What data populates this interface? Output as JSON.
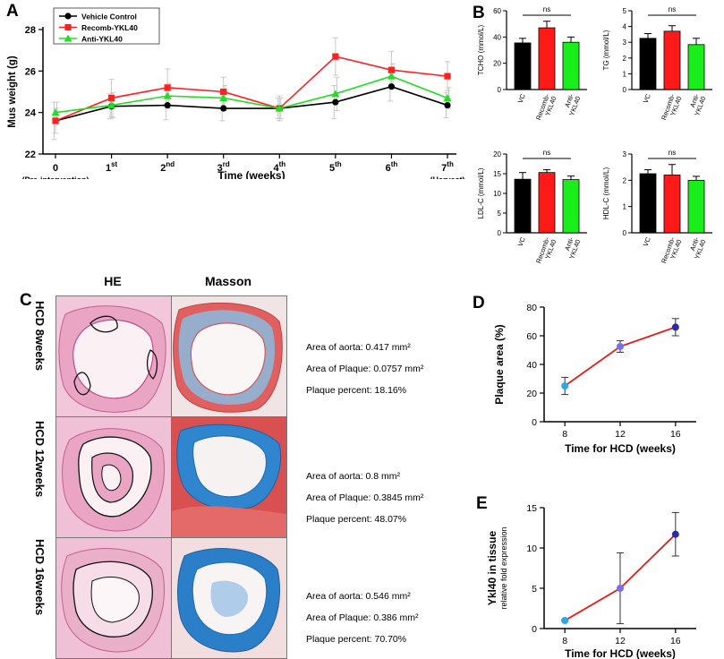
{
  "panel_labels": {
    "a": "A",
    "b": "B",
    "c": "C",
    "d": "D",
    "e": "E"
  },
  "chart_data": [
    {
      "id": "A",
      "type": "line",
      "ylabel": "Mus weight (g)",
      "xlabel": "Time (weeks)",
      "ylim": [
        22,
        28
      ],
      "yticks": [
        "22",
        "24",
        "26",
        "28"
      ],
      "x_ticks": [
        {
          "main": "0",
          "sup": "",
          "sub": "(Pre-intervention)"
        },
        {
          "main": "1",
          "sup": "st",
          "sub": ""
        },
        {
          "main": "2",
          "sup": "nd",
          "sub": ""
        },
        {
          "main": "3",
          "sup": "rd",
          "sub": ""
        },
        {
          "main": "4",
          "sup": "th",
          "sub": ""
        },
        {
          "main": "5",
          "sup": "th",
          "sub": ""
        },
        {
          "main": "6",
          "sup": "th",
          "sub": ""
        },
        {
          "main": "7",
          "sup": "th",
          "sub": "(Harvest)"
        }
      ],
      "series": [
        {
          "name": "Vehicle Control",
          "color": "#000000",
          "marker": "circle",
          "values": [
            23.6,
            24.3,
            24.35,
            24.2,
            24.2,
            24.5,
            25.25,
            24.35
          ],
          "errors": [
            0.9,
            0.6,
            0.7,
            0.6,
            0.5,
            0.8,
            0.7,
            0.6
          ]
        },
        {
          "name": "Recomb-YKL40",
          "color": "#ff2020",
          "marker": "square",
          "values": [
            23.6,
            24.7,
            25.2,
            25.0,
            24.2,
            26.7,
            26.05,
            25.75
          ],
          "errors": [
            0.6,
            0.9,
            0.9,
            0.7,
            0.6,
            0.9,
            0.9,
            0.7
          ]
        },
        {
          "name": "Anti-YKL40",
          "color": "#22dd22",
          "marker": "triangle",
          "values": [
            24.0,
            24.35,
            24.8,
            24.7,
            24.2,
            24.9,
            25.75,
            24.7
          ],
          "errors": [
            0.5,
            0.6,
            0.6,
            0.6,
            0.5,
            0.8,
            0.6,
            0.5
          ]
        }
      ]
    },
    {
      "id": "B1",
      "type": "bar",
      "ylabel": "TCHO (mmol/L)",
      "categories": [
        "VC",
        "Recomb-YKL40",
        "Anti-YKL40"
      ],
      "values": [
        35.5,
        47,
        36
      ],
      "errors": [
        3.5,
        5,
        4
      ],
      "ylim": [
        0,
        60
      ],
      "yticks": [
        "0",
        "20",
        "40",
        "60"
      ],
      "annotation": "ns"
    },
    {
      "id": "B2",
      "type": "bar",
      "ylabel": "TG (mmol/L)",
      "categories": [
        "VC",
        "Recomb-YKL40",
        "Anti-YKL40"
      ],
      "values": [
        3.25,
        3.7,
        2.85
      ],
      "errors": [
        0.3,
        0.35,
        0.4
      ],
      "ylim": [
        0,
        5
      ],
      "yticks": [
        "0",
        "1",
        "2",
        "3",
        "4",
        "5"
      ],
      "annotation": "ns"
    },
    {
      "id": "B3",
      "type": "bar",
      "ylabel": "LDL-C (mmol/L)",
      "categories": [
        "VC",
        "Recomb-YKL40",
        "Anti-YKL40"
      ],
      "values": [
        13.6,
        15.3,
        13.5
      ],
      "errors": [
        1.7,
        0.7,
        0.9
      ],
      "ylim": [
        0,
        20
      ],
      "yticks": [
        "0",
        "5",
        "10",
        "15",
        "20"
      ],
      "annotation": "ns"
    },
    {
      "id": "B4",
      "type": "bar",
      "ylabel": "HDL-C (mmol/L)",
      "categories": [
        "VC",
        "Recomb-YKL40",
        "Anti-YKL40"
      ],
      "values": [
        2.25,
        2.2,
        2.0
      ],
      "errors": [
        0.15,
        0.4,
        0.15
      ],
      "ylim": [
        0,
        3
      ],
      "yticks": [
        "0",
        "1",
        "2",
        "3"
      ],
      "annotation": "ns"
    },
    {
      "id": "D",
      "type": "line",
      "ylabel": "Plaque area (%)",
      "xlabel": "Time for HCD (weeks)",
      "x": [
        8,
        12,
        16
      ],
      "xticks": [
        "8",
        "12",
        "16"
      ],
      "values": [
        25,
        52.5,
        66
      ],
      "errors": [
        6,
        4,
        6
      ],
      "ylim": [
        0,
        80
      ],
      "yticks": [
        "0",
        "20",
        "40",
        "60",
        "80"
      ],
      "point_colors": [
        "#2aa8e8",
        "#7b6fe8",
        "#2a2aa8"
      ]
    },
    {
      "id": "E",
      "type": "line",
      "ylabel": "Ykl40 in tissue",
      "ylabel2": "relative fold expression",
      "xlabel": "Time for HCD (weeks)",
      "x": [
        8,
        12,
        16
      ],
      "xticks": [
        "8",
        "12",
        "16"
      ],
      "values": [
        1,
        5,
        11.7
      ],
      "errors": [
        0.1,
        4.4,
        2.7
      ],
      "ylim": [
        0,
        15
      ],
      "yticks": [
        "0",
        "5",
        "10",
        "15"
      ],
      "point_colors": [
        "#2aa8e8",
        "#7b6fe8",
        "#2a2aa8"
      ]
    }
  ],
  "panel_c": {
    "col_he": "HE",
    "col_masson": "Masson",
    "rows": [
      {
        "label": "HCD 8weeks",
        "aorta_label": "Area of aorta:",
        "aorta_value": "0.417 mm²",
        "plaque_label": "Area of Plaque:",
        "plaque_value": "0.0757 mm²",
        "percent_label": "Plaque percent:",
        "percent_value": "18.16%"
      },
      {
        "label": "HCD 12weeks",
        "aorta_label": "Area of aorta:",
        "aorta_value": "0.8 mm²",
        "plaque_label": "Area of Plaque:",
        "plaque_value": "0.3845 mm²",
        "percent_label": "Plaque percent:",
        "percent_value": "48.07%"
      },
      {
        "label": "HCD 16weeks",
        "aorta_label": "Area of aorta:",
        "aorta_value": "0.546 mm²",
        "plaque_label": "Area of Plaque:",
        "plaque_value": "0.386 mm²",
        "percent_label": "Plaque percent:",
        "percent_value": "70.70%"
      }
    ]
  },
  "colors": {
    "he_tissue": "#e8a9c4",
    "he_dark": "#c0608f",
    "masson_red": "#d84a4a",
    "masson_blue": "#2b7fc8",
    "d_line": "#e81b1b"
  }
}
